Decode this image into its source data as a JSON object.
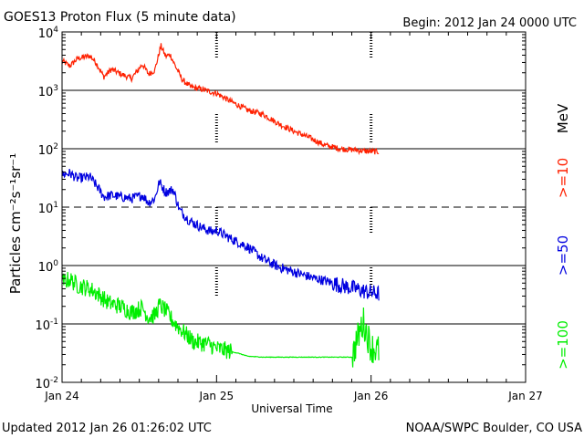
{
  "chart_data": {
    "type": "line",
    "title": "GOES13 Proton Flux (5 minute data)",
    "begin_label": "Begin: 2012 Jan 24 0000 UTC",
    "xlabel": "Universal Time",
    "ylabel": "Particles cm⁻²s⁻¹sr⁻¹",
    "yscale": "log",
    "ylim": [
      0.01,
      10000
    ],
    "xlim": [
      0,
      3
    ],
    "x_unit": "days since 2012 Jan 24 0000 UTC",
    "y_tick_labels": [
      {
        "value": 10000,
        "base": "10",
        "exp": "4"
      },
      {
        "value": 1000,
        "base": "10",
        "exp": "3"
      },
      {
        "value": 100,
        "base": "10",
        "exp": "2"
      },
      {
        "value": 10,
        "base": "10",
        "exp": "1"
      },
      {
        "value": 1,
        "base": "10",
        "exp": "0"
      },
      {
        "value": 0.1,
        "base": "10",
        "exp": "-1"
      },
      {
        "value": 0.01,
        "base": "10",
        "exp": "-2"
      }
    ],
    "x_tick_labels": [
      {
        "value": 0,
        "label": "Jan 24"
      },
      {
        "value": 1,
        "label": "Jan 25"
      },
      {
        "value": 2,
        "label": "Jan 26"
      },
      {
        "value": 3,
        "label": "Jan 27"
      }
    ],
    "threshold_lines": [
      {
        "value": 1000,
        "style": "solid"
      },
      {
        "value": 100,
        "style": "solid"
      },
      {
        "value": 10,
        "style": "dashed"
      },
      {
        "value": 1,
        "style": "solid"
      },
      {
        "value": 0.1,
        "style": "solid"
      }
    ],
    "legend_unit": "MeV",
    "series": [
      {
        "name": ">=10",
        "color": "#ff2000",
        "points": [
          [
            0,
            3200.0
          ],
          [
            0.05,
            2600.0
          ],
          [
            0.1,
            3500.0
          ],
          [
            0.18,
            3900.0
          ],
          [
            0.22,
            3000.0
          ],
          [
            0.27,
            1700.0
          ],
          [
            0.32,
            2300.0
          ],
          [
            0.38,
            1900.0
          ],
          [
            0.45,
            1600.0
          ],
          [
            0.52,
            2800.0
          ],
          [
            0.56,
            1900.0
          ],
          [
            0.6,
            2200.0
          ],
          [
            0.64,
            5800.0
          ],
          [
            0.67,
            3800.0
          ],
          [
            0.7,
            4100.0
          ],
          [
            0.73,
            2700.0
          ],
          [
            0.78,
            1500.0
          ],
          [
            0.83,
            1150.0
          ],
          [
            0.9,
            1050.0
          ],
          [
            0.97,
            930.0
          ],
          [
            1.0,
            890.0
          ],
          [
            1.1,
            630.0
          ],
          [
            1.2,
            460.0
          ],
          [
            1.3,
            390.0
          ],
          [
            1.4,
            270.0
          ],
          [
            1.5,
            200.0
          ],
          [
            1.6,
            155.0
          ],
          [
            1.7,
            115.0
          ],
          [
            1.8,
            100.0
          ],
          [
            1.9,
            95.0
          ],
          [
            1.98,
            90.0
          ],
          [
            2.05,
            89.0
          ]
        ],
        "jitter": 0.1
      },
      {
        "name": ">=50",
        "color": "#0000e0",
        "points": [
          [
            0,
            36
          ],
          [
            0.05,
            38
          ],
          [
            0.1,
            31
          ],
          [
            0.18,
            33
          ],
          [
            0.23,
            22
          ],
          [
            0.27,
            15
          ],
          [
            0.32,
            16
          ],
          [
            0.38,
            15
          ],
          [
            0.45,
            14
          ],
          [
            0.52,
            16
          ],
          [
            0.56,
            12
          ],
          [
            0.6,
            14
          ],
          [
            0.63,
            27
          ],
          [
            0.67,
            18
          ],
          [
            0.72,
            20
          ],
          [
            0.76,
            9
          ],
          [
            0.82,
            6
          ],
          [
            0.9,
            4.5
          ],
          [
            0.97,
            3.8
          ],
          [
            1.0,
            4.0
          ],
          [
            1.1,
            2.8
          ],
          [
            1.2,
            2.1
          ],
          [
            1.3,
            1.3
          ],
          [
            1.4,
            0.95
          ],
          [
            1.5,
            0.78
          ],
          [
            1.6,
            0.64
          ],
          [
            1.7,
            0.55
          ],
          [
            1.8,
            0.46
          ],
          [
            1.9,
            0.4
          ],
          [
            1.98,
            0.35
          ],
          [
            2.05,
            0.33
          ]
        ],
        "jitter": 0.17
      },
      {
        "name": ">=100",
        "color": "#00ee00",
        "points": [
          [
            0,
            0.52
          ],
          [
            0.05,
            0.58
          ],
          [
            0.1,
            0.46
          ],
          [
            0.18,
            0.4
          ],
          [
            0.23,
            0.33
          ],
          [
            0.3,
            0.23
          ],
          [
            0.38,
            0.2
          ],
          [
            0.45,
            0.16
          ],
          [
            0.52,
            0.19
          ],
          [
            0.56,
            0.13
          ],
          [
            0.6,
            0.14
          ],
          [
            0.63,
            0.21
          ],
          [
            0.67,
            0.17
          ],
          [
            0.72,
            0.11
          ],
          [
            0.76,
            0.085
          ],
          [
            0.85,
            0.05
          ],
          [
            0.95,
            0.045
          ],
          [
            1.0,
            0.038
          ],
          [
            1.05,
            0.036
          ],
          [
            1.15,
            0.031
          ],
          [
            1.2,
            0.028
          ],
          [
            1.3,
            0.027
          ],
          [
            1.5,
            0.027
          ],
          [
            1.7,
            0.027
          ],
          [
            1.88,
            0.027
          ],
          [
            1.9,
            0.045
          ],
          [
            1.95,
            0.11
          ],
          [
            1.98,
            0.06
          ],
          [
            2.0,
            0.04
          ],
          [
            2.05,
            0.035
          ]
        ],
        "jitter": 0.3
      }
    ]
  },
  "footer": {
    "updated": "Updated 2012 Jan 26 01:26:02 UTC",
    "credit": "NOAA/SWPC Boulder, CO USA"
  }
}
